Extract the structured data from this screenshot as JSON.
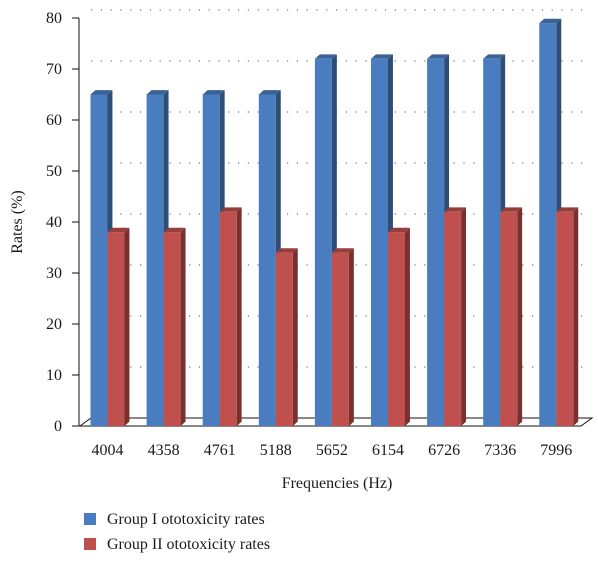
{
  "chart_data": {
    "type": "bar",
    "style": "3d-clustered-columns",
    "categories": [
      "4004",
      "4358",
      "4761",
      "5188",
      "5652",
      "6154",
      "6726",
      "7336",
      "7996"
    ],
    "series": [
      {
        "name": "Group I ototoxicity rates",
        "values": [
          65,
          65,
          65,
          65,
          72,
          72,
          72,
          72,
          79
        ],
        "color": "#4a7dbf"
      },
      {
        "name": "Group II ototoxicity rates",
        "values": [
          38,
          38,
          42,
          34,
          34,
          38,
          42,
          42,
          42
        ],
        "color": "#c0504d"
      }
    ],
    "xlabel": "Frequencies (Hz)",
    "ylabel": "Rates (%)",
    "ylim": [
      0,
      80
    ],
    "yticks": [
      0,
      10,
      20,
      30,
      40,
      50,
      60,
      70,
      80
    ],
    "grid": "dotted-horizontal",
    "legend_position": "bottom-left"
  }
}
